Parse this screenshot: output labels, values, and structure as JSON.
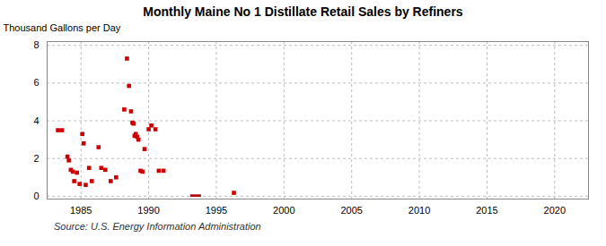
{
  "chart_data": {
    "type": "scatter",
    "title": "Monthly Maine No 1 Distillate Retail Sales by Refiners",
    "ylabel": "Thousand Gallons per Day",
    "source": "Source: U.S. Energy Information Administration",
    "x": [
      1983.3,
      1983.6,
      1984.0,
      1984.1,
      1984.25,
      1984.4,
      1984.5,
      1984.7,
      1984.9,
      1985.1,
      1985.2,
      1985.35,
      1985.6,
      1985.8,
      1986.3,
      1986.5,
      1986.8,
      1987.2,
      1987.6,
      1988.2,
      1988.4,
      1988.55,
      1988.7,
      1988.8,
      1988.88,
      1988.96,
      1989.05,
      1989.15,
      1989.25,
      1989.4,
      1989.55,
      1989.7,
      1990.0,
      1990.2,
      1990.5,
      1990.75,
      1991.1,
      1996.3
    ],
    "values": [
      3.5,
      3.5,
      2.1,
      1.9,
      1.4,
      1.3,
      0.8,
      1.25,
      0.65,
      3.3,
      2.8,
      0.6,
      1.5,
      0.8,
      2.6,
      1.5,
      1.4,
      0.8,
      1.0,
      4.6,
      7.3,
      5.85,
      4.5,
      3.9,
      3.85,
      3.2,
      3.3,
      3.15,
      3.0,
      1.35,
      1.3,
      2.5,
      3.55,
      3.75,
      3.55,
      1.35,
      1.35,
      0.18
    ],
    "color": "#cc0000",
    "marker": "square",
    "bar": {
      "x1": 1993.1,
      "x2": 1993.9,
      "y1": -0.05,
      "y2": 0.07,
      "color": "#aa0000"
    },
    "xlim": [
      1982.5,
      2022.5
    ],
    "xticks": [
      1985,
      1990,
      1995,
      2000,
      2005,
      2010,
      2015,
      2020
    ],
    "ylim": [
      -0.15,
      8.2
    ],
    "yticks": [
      0,
      2,
      4,
      6,
      8
    ],
    "grid": true
  }
}
